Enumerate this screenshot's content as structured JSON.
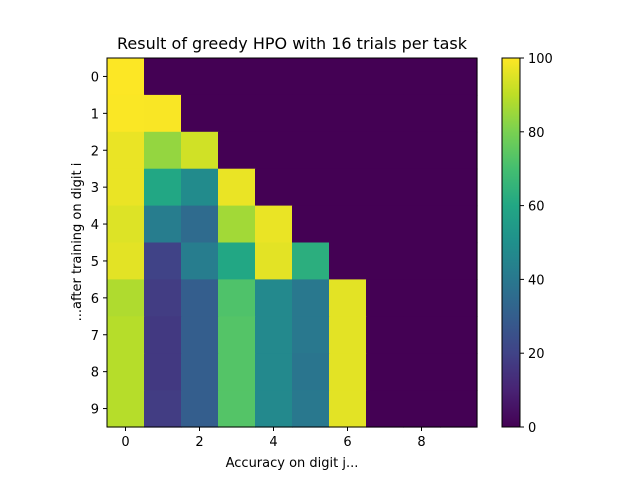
{
  "chart_data": {
    "type": "heatmap",
    "title": "Result of greedy HPO with 16 trials per task",
    "xlabel": "Accuracy on digit j...",
    "ylabel": "...after training on digit i",
    "x_ticks": [
      "0",
      "2",
      "4",
      "6",
      "8"
    ],
    "x_tick_values": [
      0,
      2,
      4,
      6,
      8
    ],
    "y_ticks": [
      "0",
      "1",
      "2",
      "3",
      "4",
      "5",
      "6",
      "7",
      "8",
      "9"
    ],
    "y_tick_values": [
      0,
      1,
      2,
      3,
      4,
      5,
      6,
      7,
      8,
      9
    ],
    "colorbar": {
      "ticks": [
        "0",
        "20",
        "40",
        "60",
        "80",
        "100"
      ],
      "tick_values": [
        0,
        20,
        40,
        60,
        80,
        100
      ],
      "range": [
        0,
        100
      ],
      "colormap": "viridis"
    },
    "rows": 10,
    "cols": 10,
    "values": [
      [
        99.8,
        0,
        0,
        0,
        0,
        0,
        0,
        0,
        0,
        0
      ],
      [
        99.5,
        99.3,
        0,
        0,
        0,
        0,
        0,
        0,
        0,
        0
      ],
      [
        97,
        84,
        93,
        0,
        0,
        0,
        0,
        0,
        0,
        0
      ],
      [
        97,
        60,
        48,
        97,
        0,
        0,
        0,
        0,
        0,
        0
      ],
      [
        95,
        42,
        35,
        86,
        97,
        0,
        0,
        0,
        0,
        0
      ],
      [
        96,
        20,
        42,
        60,
        96,
        63,
        0,
        0,
        0,
        0
      ],
      [
        88,
        18,
        30,
        72,
        47,
        40,
        96,
        0,
        0,
        0
      ],
      [
        89,
        17,
        30,
        73,
        47,
        40,
        96,
        0,
        0,
        0
      ],
      [
        89,
        17,
        30,
        73,
        47,
        39,
        96,
        0,
        0,
        0
      ],
      [
        89,
        18,
        30,
        73,
        47,
        40,
        96,
        0,
        0,
        0
      ]
    ]
  }
}
